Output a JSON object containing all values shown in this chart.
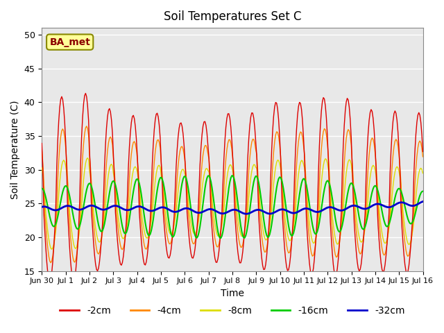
{
  "title": "Soil Temperatures Set C",
  "xlabel": "Time",
  "ylabel": "Soil Temperature (C)",
  "ylim": [
    15,
    51
  ],
  "yticks": [
    15,
    20,
    25,
    30,
    35,
    40,
    45,
    50
  ],
  "annotation": "BA_met",
  "colors": {
    "-2cm": "#dd0000",
    "-4cm": "#ff8800",
    "-8cm": "#dddd00",
    "-16cm": "#00cc00",
    "-32cm": "#0000cc"
  },
  "legend_labels": [
    "-2cm",
    "-4cm",
    "-8cm",
    "-16cm",
    "-32cm"
  ],
  "background_color": "#ffffff",
  "plot_bg_color": "#e8e8e8",
  "grid_color": "#ffffff",
  "n_days": 16,
  "points_per_day": 24
}
